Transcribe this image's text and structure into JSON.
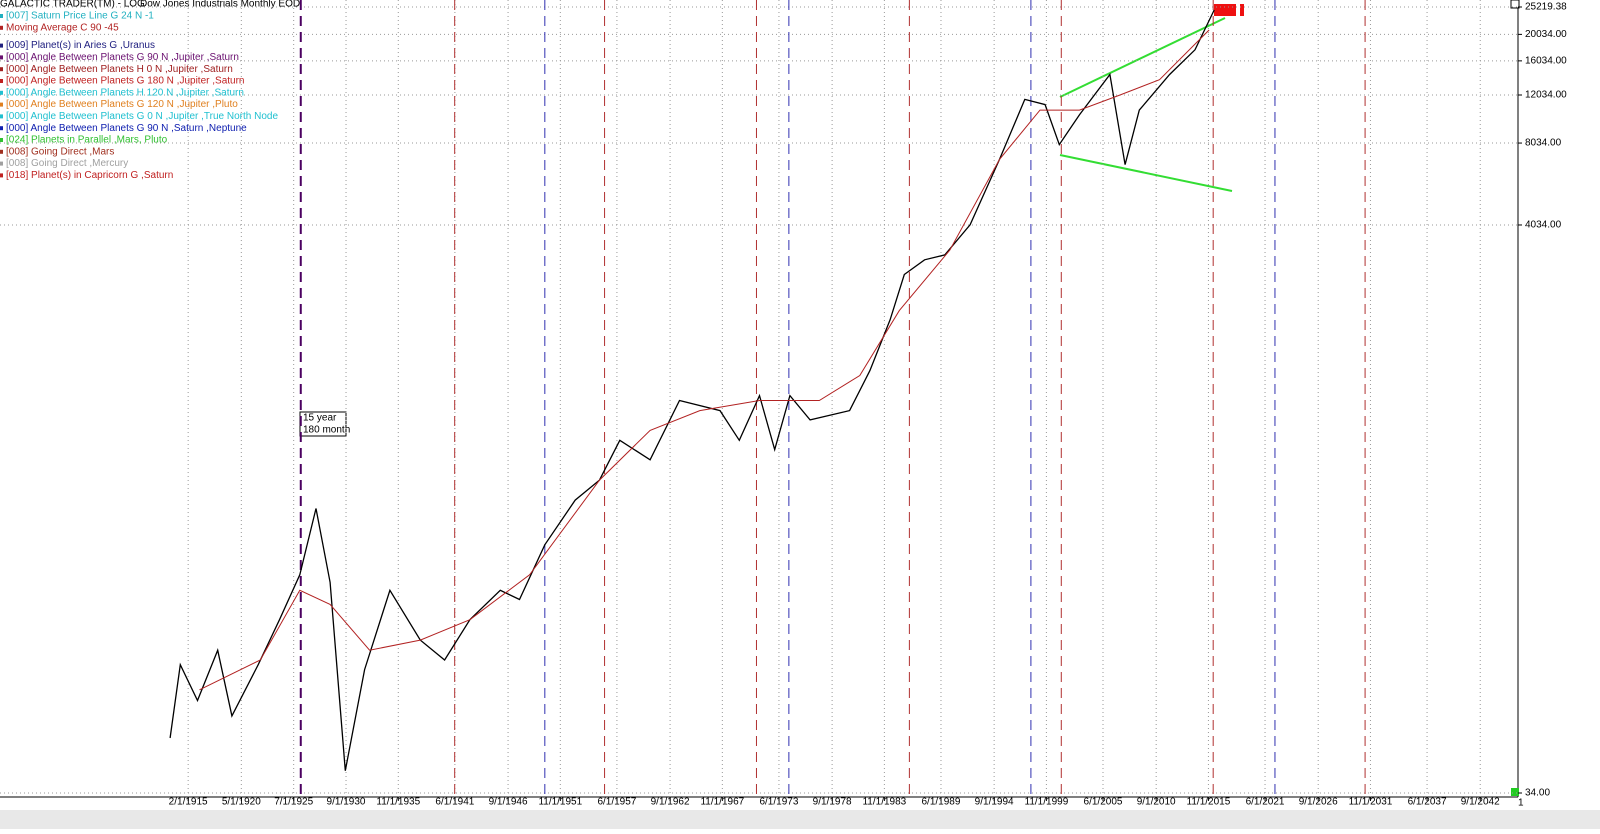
{
  "chart_data": {
    "type": "line",
    "app_title": "GALACTIC TRADER(TM) - LOG",
    "title": "Dow Jones Industrials Monthly EOD",
    "log_y": true,
    "grid": true,
    "xlim": [
      1896.5,
      2046.4
    ],
    "ylim": [
      34,
      25219.38
    ],
    "xticks": [
      {
        "value": 1915.08,
        "label": "2/1/1915"
      },
      {
        "value": 1920.33,
        "label": "5/1/1920"
      },
      {
        "value": 1925.5,
        "label": "7/1/1925"
      },
      {
        "value": 1930.67,
        "label": "9/1/1930"
      },
      {
        "value": 1935.83,
        "label": "11/1/1935"
      },
      {
        "value": 1941.42,
        "label": "6/1/1941"
      },
      {
        "value": 1946.67,
        "label": "9/1/1946"
      },
      {
        "value": 1951.83,
        "label": "11/1/1951"
      },
      {
        "value": 1957.42,
        "label": "6/1/1957"
      },
      {
        "value": 1962.67,
        "label": "9/1/1962"
      },
      {
        "value": 1967.83,
        "label": "11/1/1967"
      },
      {
        "value": 1973.42,
        "label": "6/1/1973"
      },
      {
        "value": 1978.67,
        "label": "9/1/1978"
      },
      {
        "value": 1983.83,
        "label": "11/1/1983"
      },
      {
        "value": 1989.42,
        "label": "6/1/1989"
      },
      {
        "value": 1994.67,
        "label": "9/1/1994"
      },
      {
        "value": 1999.83,
        "label": "11/1/1999"
      },
      {
        "value": 2005.42,
        "label": "6/1/2005"
      },
      {
        "value": 2010.67,
        "label": "9/1/2010"
      },
      {
        "value": 2015.83,
        "label": "11/1/2015"
      },
      {
        "value": 2021.42,
        "label": "6/1/2021"
      },
      {
        "value": 2026.67,
        "label": "9/1/2026"
      },
      {
        "value": 2031.83,
        "label": "11/1/2031"
      },
      {
        "value": 2037.42,
        "label": "6/1/2037"
      },
      {
        "value": 2042.67,
        "label": "9/1/2042"
      }
    ],
    "yticks": [
      {
        "value": 34,
        "label": "34.00"
      },
      {
        "value": 4034,
        "label": "4034.00"
      },
      {
        "value": 8034,
        "label": "8034.00"
      },
      {
        "value": 12034,
        "label": "12034.00"
      },
      {
        "value": 16034,
        "label": "16034.00"
      },
      {
        "value": 20034,
        "label": "20034.00"
      },
      25219.38
    ],
    "series": [
      {
        "name": "Dow Jones Industrials",
        "color": "#000000",
        "x": [
          1913.3,
          1914.3,
          1916.0,
          1918.0,
          1919.4,
          1922.0,
          1924.1,
          1926.1,
          1927.7,
          1929.1,
          1930.6,
          1932.5,
          1935.0,
          1938.0,
          1940.4,
          1942.9,
          1945.9,
          1947.8,
          1950.3,
          1953.3,
          1955.7,
          1957.7,
          1960.7,
          1963.6,
          1967.6,
          1969.5,
          1971.5,
          1973.0,
          1974.5,
          1976.5,
          1980.4,
          1982.4,
          1984.4,
          1985.8,
          1987.8,
          1989.8,
          1992.3,
          1995.2,
          1997.7,
          1999.7,
          2001.1,
          2003.1,
          2006.1,
          2007.6,
          2009.0,
          2012.0,
          2014.5,
          2016.4
        ],
        "values": [
          54,
          100,
          74,
          113,
          65,
          100,
          146,
          213,
          372,
          200,
          41,
          96,
          187,
          123,
          104,
          146,
          187,
          173,
          274,
          399,
          472,
          660,
          560,
          922,
          847,
          660,
          961,
          610,
          961,
          783,
          847,
          1186,
          1817,
          2660,
          3009,
          3137,
          4040,
          7000,
          11600,
          11100,
          7930,
          10200,
          14300,
          6700,
          10600,
          14300,
          17600,
          24600
        ]
      },
      {
        "name": "Moving Average C 90 -45",
        "color": "#b22222",
        "x": [
          1916.2,
          1922.2,
          1926.1,
          1929.1,
          1933.0,
          1938.0,
          1942.9,
          1948.8,
          1955.7,
          1960.7,
          1965.6,
          1971.5,
          1977.4,
          1981.4,
          1985.3,
          1990.3,
          1995.2,
          1999.2,
          2003.1,
          2007.1,
          2011.0,
          2015.9
        ],
        "values": [
          81,
          104,
          187,
          166,
          113,
          123,
          146,
          213,
          472,
          717,
          847,
          922,
          922,
          1138,
          1963,
          3270,
          7000,
          10600,
          10600,
          12030,
          13680,
          20780
        ]
      }
    ],
    "vlines": [
      {
        "x": 1926.2,
        "color": "#4b0060"
      },
      {
        "x": 1941.4,
        "color": "#b03030"
      },
      {
        "x": 1950.3,
        "color": "#3030b0"
      },
      {
        "x": 1956.2,
        "color": "#b03030"
      },
      {
        "x": 1971.2,
        "color": "#b03030"
      },
      {
        "x": 1974.4,
        "color": "#3030b0"
      },
      {
        "x": 1986.3,
        "color": "#b03030"
      },
      {
        "x": 1998.3,
        "color": "#3030b0"
      },
      {
        "x": 2001.3,
        "color": "#b03030"
      },
      {
        "x": 2016.3,
        "color": "#b03030"
      },
      {
        "x": 2022.4,
        "color": "#3030b0"
      },
      {
        "x": 2031.3,
        "color": "#b03030"
      }
    ],
    "legend_items": [
      {
        "text": "[007] Saturn Price Line G 24 N -1",
        "color": "#20b0c0"
      },
      {
        "text": "Moving Average C 90 -45",
        "color": "#b22222"
      },
      {
        "text": "[009] Planet(s) in Aries G ,Uranus",
        "color": "#202080"
      },
      {
        "text": "[000] Angle Between Planets G 90 N ,Jupiter ,Saturn",
        "color": "#6a1070"
      },
      {
        "text": "[000] Angle Between Planets H 0 N ,Jupiter ,Saturn",
        "color": "#a02020"
      },
      {
        "text": "[000] Angle Between Planets G 180 N ,Jupiter ,Saturn",
        "color": "#c02020"
      },
      {
        "text": "[000] Angle Between Planets H 120 N ,Jupiter ,Saturn",
        "color": "#20c0d0"
      },
      {
        "text": "[000] Angle Between Planets G 120 N ,Jupiter ,Pluto",
        "color": "#e08020"
      },
      {
        "text": "[000] Angle Between Planets G 0 N ,Jupiter ,True North Node",
        "color": "#20c0d0"
      },
      {
        "text": "[000] Angle Between Planets G 90 N ,Saturn ,Neptune",
        "color": "#1020b0"
      },
      {
        "text": "[024] Planets in Parallel ,Mars, Pluto",
        "color": "#30c030"
      },
      {
        "text": "[008] Going Direct ,Mars",
        "color": "#a03020"
      },
      {
        "text": "[008] Going Direct ,Mercury",
        "color": "#a0a0a0"
      },
      {
        "text": "[018] Planet(s) in Capricorn G ,Saturn",
        "color": "#c02020"
      }
    ],
    "annotation": [
      "15 year",
      "180 month"
    ],
    "corner_label": "1"
  }
}
